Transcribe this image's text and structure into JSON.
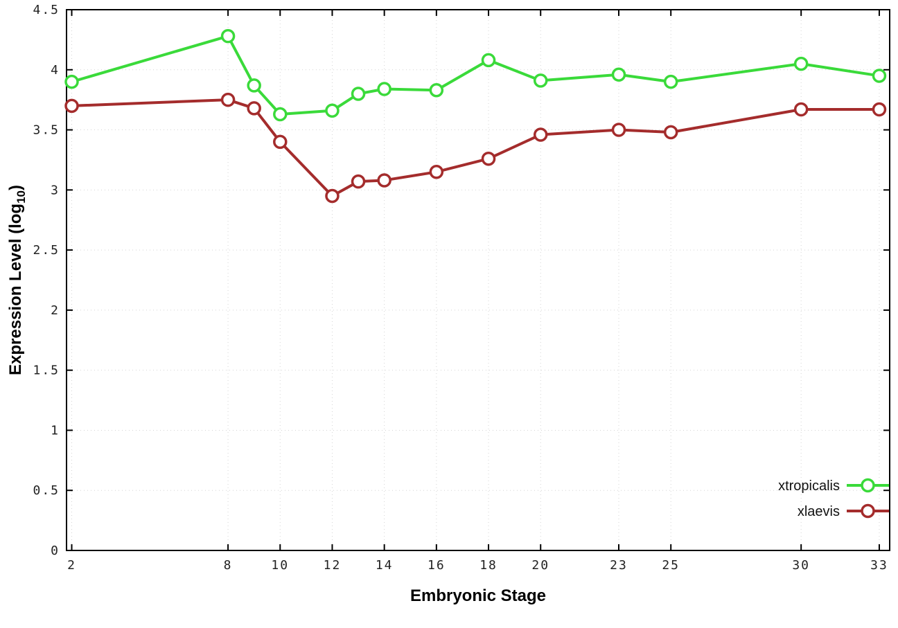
{
  "chart_data": {
    "type": "line",
    "title": "",
    "xlabel": "Embryonic Stage",
    "ylabel": "Expression Level (log10)",
    "ylabel_parts": {
      "prefix": "Expression Level (log",
      "sub": "10",
      "suffix": ")"
    },
    "x": [
      2,
      8,
      9,
      10,
      12,
      13,
      14,
      16,
      18,
      20,
      23,
      25,
      30,
      33
    ],
    "series": [
      {
        "name": "xtropicalis",
        "color": "#3ada3a",
        "values": [
          3.9,
          4.28,
          3.87,
          3.63,
          3.66,
          3.8,
          3.84,
          3.83,
          4.08,
          3.91,
          3.96,
          3.9,
          4.05,
          3.95
        ]
      },
      {
        "name": "xlaevis",
        "color": "#a42c2c",
        "values": [
          3.7,
          3.75,
          3.68,
          3.4,
          2.95,
          3.07,
          3.08,
          3.15,
          3.26,
          3.46,
          3.5,
          3.48,
          3.67,
          3.67
        ]
      }
    ],
    "xticks": [
      2,
      8,
      10,
      12,
      14,
      16,
      18,
      20,
      23,
      25,
      30,
      33
    ],
    "yticks": [
      0,
      0.5,
      1,
      1.5,
      2,
      2.5,
      3,
      3.5,
      4,
      4.5
    ],
    "xlim": [
      1.8,
      33.4
    ],
    "ylim": [
      0,
      4.5
    ],
    "grid": true,
    "legend_position": "bottom-right-inside",
    "marker": "open-circle",
    "background_color": "#ffffff",
    "border_color": "#000000"
  }
}
